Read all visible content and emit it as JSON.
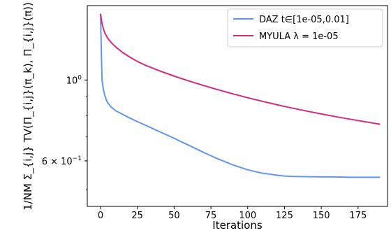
{
  "chart_data": {
    "type": "line",
    "xlabel": "Iterations",
    "ylabel": "1/NM Σ_{i,j} TV(Π_{i,j}(π_k), Π_{i,j}(π))",
    "yscale": "log",
    "xlim": [
      -9,
      195
    ],
    "ylim": [
      0.45,
      1.6
    ],
    "grid": false,
    "legend_position": "top-right",
    "x_ticks": [
      0,
      25,
      50,
      75,
      100,
      125,
      150,
      175
    ],
    "y_ticks": [
      {
        "value": 1.0,
        "label": "10^0"
      },
      {
        "value": 0.6,
        "label": "6 × 10^-1"
      }
    ],
    "series": [
      {
        "name": "DAZ t∈[1e-05,0.01]",
        "color": "#6495ed",
        "x": [
          0,
          1,
          2,
          3,
          4,
          5,
          7,
          10,
          15,
          20,
          25,
          30,
          40,
          50,
          60,
          70,
          75,
          80,
          90,
          100,
          110,
          120,
          125,
          130,
          140,
          150,
          160,
          170,
          180,
          190
        ],
        "y": [
          1.52,
          1.0,
          0.94,
          0.905,
          0.88,
          0.865,
          0.845,
          0.825,
          0.805,
          0.786,
          0.769,
          0.753,
          0.722,
          0.692,
          0.662,
          0.633,
          0.62,
          0.607,
          0.585,
          0.567,
          0.555,
          0.548,
          0.545,
          0.544,
          0.543,
          0.542,
          0.542,
          0.541,
          0.541,
          0.541
        ]
      },
      {
        "name": "MYULA λ = 1e-05",
        "color": "#d62a7f",
        "x": [
          0,
          1,
          2,
          3,
          5,
          7,
          10,
          15,
          20,
          25,
          30,
          40,
          50,
          60,
          70,
          80,
          90,
          100,
          110,
          120,
          125,
          130,
          140,
          150,
          160,
          170,
          180,
          190
        ],
        "y": [
          1.52,
          1.43,
          1.38,
          1.345,
          1.3,
          1.27,
          1.235,
          1.19,
          1.155,
          1.125,
          1.1,
          1.06,
          1.025,
          0.994,
          0.966,
          0.94,
          0.916,
          0.894,
          0.874,
          0.855,
          0.846,
          0.838,
          0.822,
          0.807,
          0.793,
          0.78,
          0.768,
          0.756
        ]
      }
    ]
  }
}
